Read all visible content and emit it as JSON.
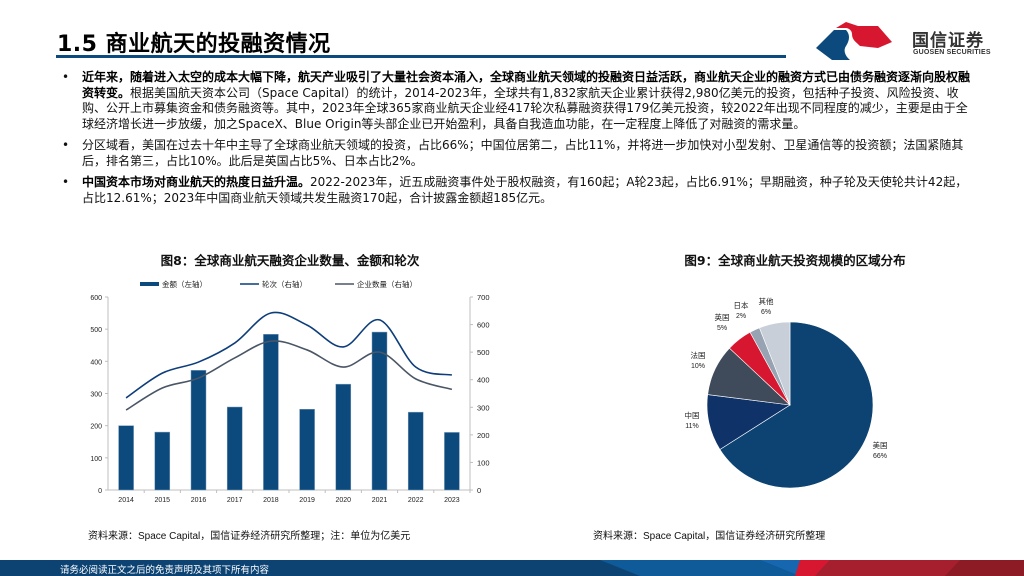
{
  "header": {
    "title": "1.5  商业航天的投融资情况",
    "logo_cn": "国信证券",
    "logo_en": "GUOSEN SECURITIES",
    "accent_color": "#0c4a7d",
    "logo_red": "#d7172f",
    "logo_blue": "#0c4a7d"
  },
  "bullets": [
    {
      "bold": "近年来，随着进入太空的成本大幅下降，航天产业吸引了大量社会资本涌入，全球商业航天领域的投融资日益活跃，商业航天企业的融资方式已由债务融资逐渐向股权融资转变。",
      "text": "根据美国航天资本公司（Space Capital）的统计，2014-2023年，全球共有1,832家航天企业累计获得2,980亿美元的投资，包括种子投资、风险投资、收购、公开上市募集资金和债务融资等。其中，2023年全球365家商业航天企业经417轮次私募融资获得179亿美元投资，较2022年出现不同程度的减少，主要是由于全球经济增长进一步放缓，加之SpaceX、Blue Origin等头部企业已开始盈利，具备自我造血功能，在一定程度上降低了对融资的需求量。"
    },
    {
      "bold": "",
      "text": "分区域看，美国在过去十年中主导了全球商业航天领域的投资，占比66%；中国位居第二，占比11%，并将进一步加快对小型发射、卫星通信等的投资额；法国紧随其后，排名第三，占比10%。此后是英国占比5%、日本占比2%。"
    },
    {
      "bold": "中国资本市场对商业航天的热度日益升温。",
      "text": "2022-2023年，近五成融资事件处于股权融资，有160起；A轮23起，占比6.91%；早期融资，种子轮及天使轮共计42起，占比12.61%；2023年中国商业航天领域共发生融资170起，合计披露金额超185亿元。"
    }
  ],
  "figure8": {
    "title": "图8：全球商业航天融资企业数量、金额和轮次",
    "source": "资料来源：Space Capital，国信证券经济研究所整理；注：单位为亿美元"
  },
  "figure9": {
    "title": "图9：全球商业航天投资规模的区域分布",
    "source": "资料来源：Space Capital，国信证券经济研究所整理"
  },
  "footer": {
    "disclaimer": "请务必阅读正文之后的免责声明及其项下所有内容"
  },
  "chart_data": [
    {
      "type": "bar+line",
      "title": "图8：全球商业航天融资企业数量、金额和轮次",
      "categories": [
        "2014",
        "2015",
        "2016",
        "2017",
        "2018",
        "2019",
        "2020",
        "2021",
        "2022",
        "2023"
      ],
      "series": [
        {
          "name": "金额（左轴）",
          "type": "bar",
          "axis": "left",
          "color": "#0c4a7d",
          "values": [
            200,
            180,
            372,
            258,
            484,
            251,
            329,
            491,
            242,
            179
          ]
        },
        {
          "name": "轮次（右轴）",
          "type": "line",
          "axis": "right",
          "color": "#0d3d7a",
          "values": [
            334,
            424,
            464,
            533,
            642,
            598,
            519,
            617,
            446,
            417
          ]
        },
        {
          "name": "企业数量（右轴）",
          "type": "line",
          "axis": "right",
          "color": "#4a5666",
          "values": [
            290,
            370,
            406,
            479,
            540,
            508,
            446,
            500,
            403,
            365
          ]
        }
      ],
      "left_axis": {
        "ticks": [
          0,
          100,
          200,
          300,
          400,
          500,
          600
        ],
        "ylim": [
          0,
          600
        ]
      },
      "right_axis": {
        "ticks": [
          0,
          100,
          200,
          300,
          400,
          500,
          600,
          700
        ],
        "ylim": [
          0,
          700
        ]
      },
      "legend_position": "top",
      "grid": false
    },
    {
      "type": "pie",
      "title": "图9：全球商业航天投资规模的区域分布",
      "labels": [
        "美国",
        "中国",
        "法国",
        "英国",
        "日本",
        "其他"
      ],
      "values": [
        66,
        11,
        10,
        5,
        2,
        6
      ],
      "display": [
        "66%",
        "11%",
        "10%",
        "5%",
        "2%",
        "6%"
      ],
      "colors": [
        "#0c4373",
        "#0f3368",
        "#3f4b5a",
        "#d7172f",
        "#97a3b3",
        "#c8cfd9"
      ]
    }
  ]
}
